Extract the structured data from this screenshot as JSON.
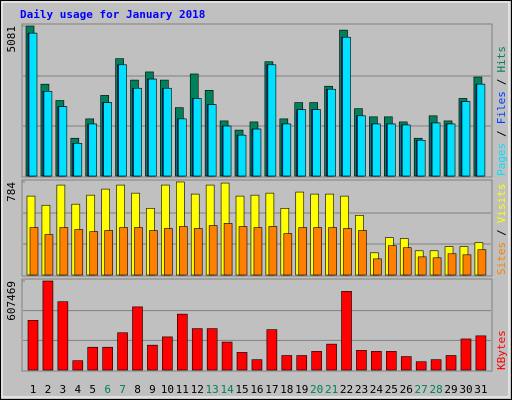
{
  "chart_data": [
    {
      "type": "bar",
      "title": "Daily usage for January 2018",
      "ylim": [
        0,
        5081
      ],
      "yticks": [
        5081
      ],
      "legend_separator": "/",
      "series": [
        {
          "name": "Pages",
          "color": "#00e0ff",
          "values": [
            4838,
            2868,
            2350,
            1106,
            1763,
            2488,
            3767,
            2972,
            3283,
            2972,
            1935,
            2627,
            2419,
            1693,
            1382,
            1590,
            3767,
            1763,
            2246,
            2246,
            2938,
            4700,
            2039,
            1763,
            1763,
            1728,
            1210,
            1797,
            1763,
            2523,
            3110
          ]
        },
        {
          "name": "Files",
          "color": "#0040ff",
          "values": [
            4838,
            2868,
            2350,
            1106,
            1763,
            2488,
            3767,
            2972,
            3283,
            2972,
            1935,
            2627,
            2419,
            1693,
            1382,
            1590,
            3767,
            1763,
            2246,
            2246,
            2938,
            4700,
            2039,
            1763,
            1763,
            1728,
            1210,
            1797,
            1763,
            2523,
            3110
          ]
        },
        {
          "name": "Hits",
          "color": "#00805c",
          "values": [
            5081,
            3110,
            2557,
            1279,
            1935,
            2730,
            3975,
            3249,
            3525,
            3249,
            2316,
            3456,
            2903,
            1866,
            1555,
            1832,
            3871,
            1935,
            2488,
            2488,
            3041,
            4942,
            2281,
            2004,
            2004,
            1832,
            1279,
            2039,
            1866,
            2627,
            3352
          ]
        }
      ]
    },
    {
      "type": "bar",
      "ylim": [
        0,
        784
      ],
      "yticks": [
        784
      ],
      "legend_separator": "/",
      "series": [
        {
          "name": "Sites",
          "color": "#ff8000",
          "values": [
            400,
            341,
            400,
            383,
            366,
            375,
            400,
            400,
            375,
            392,
            409,
            392,
            417,
            435,
            409,
            400,
            409,
            349,
            400,
            400,
            400,
            392,
            375,
            136,
            247,
            230,
            153,
            145,
            179,
            170,
            213
          ]
        },
        {
          "name": "Visits",
          "color": "#ffff00",
          "values": [
            665,
            588,
            758,
            597,
            673,
            724,
            758,
            690,
            562,
            758,
            784,
            682,
            758,
            775,
            665,
            673,
            690,
            562,
            699,
            682,
            682,
            665,
            503,
            187,
            315,
            307,
            204,
            204,
            239,
            239,
            273
          ]
        }
      ]
    },
    {
      "type": "bar",
      "ylim": [
        0,
        607469
      ],
      "yticks": [
        607469
      ],
      "categories": [
        "1",
        "2",
        "3",
        "4",
        "5",
        "6",
        "7",
        "8",
        "9",
        "10",
        "11",
        "12",
        "13",
        "14",
        "15",
        "16",
        "17",
        "18",
        "19",
        "20",
        "21",
        "22",
        "23",
        "24",
        "25",
        "26",
        "27",
        "28",
        "29",
        "30",
        "31"
      ],
      "category_colors": [
        "#000000",
        "#000000",
        "#000000",
        "#000000",
        "#000000",
        "#00805c",
        "#00805c",
        "#000000",
        "#000000",
        "#000000",
        "#000000",
        "#000000",
        "#00805c",
        "#00805c",
        "#000000",
        "#000000",
        "#000000",
        "#000000",
        "#000000",
        "#00805c",
        "#00805c",
        "#000000",
        "#000000",
        "#000000",
        "#000000",
        "#000000",
        "#00805c",
        "#00805c",
        "#000000",
        "#000000",
        "#000000"
      ],
      "series": [
        {
          "name": "KBytes",
          "color": "#ff0000",
          "values": [
            339072,
            607469,
            466224,
            63576,
            155408,
            155408,
            254304,
            430904,
            169536,
            226048,
            381456,
            282560,
            282560,
            190728,
            120088,
            70640,
            275496,
            98896,
            98896,
            127152,
            176600,
            536864,
            134216,
            127152,
            127152,
            91832,
            56512,
            70640,
            98896,
            211920,
            233112
          ]
        }
      ]
    }
  ]
}
